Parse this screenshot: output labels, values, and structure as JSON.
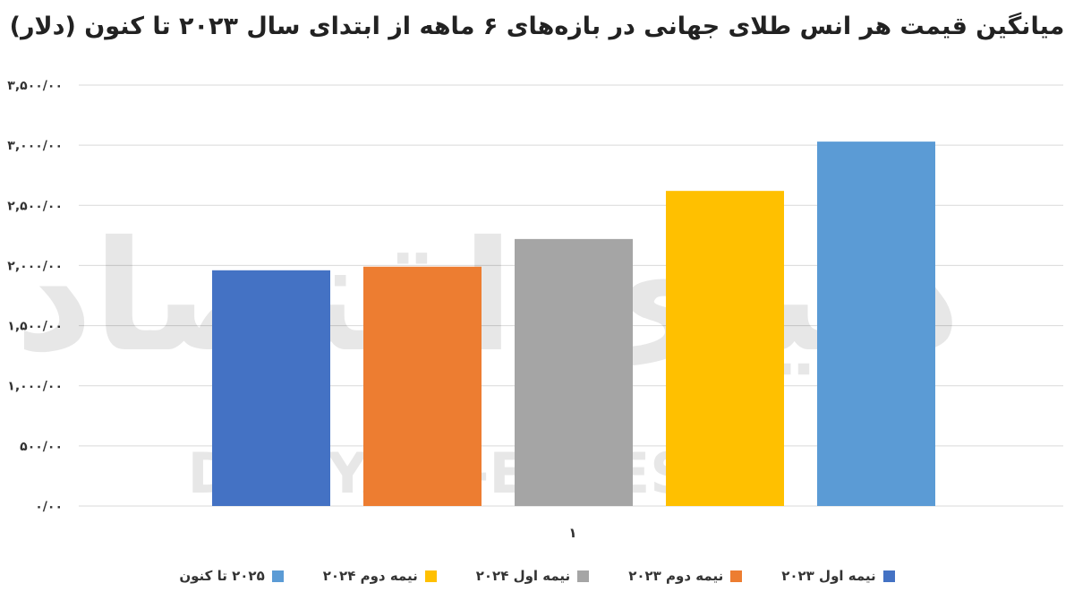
{
  "chart_data": {
    "type": "bar",
    "title": "میانگین قیمت هر انس طلای جهانی در بازه‌های ۶ ماهه از ابتدای سال ۲۰۲۳ تا کنون (دلار)",
    "x_tick_label": "۱",
    "ylim": [
      0,
      3500
    ],
    "y_ticks": [
      {
        "value": 0,
        "label": "۰/۰۰"
      },
      {
        "value": 500,
        "label": "۵۰۰/۰۰"
      },
      {
        "value": 1000,
        "label": "۱,۰۰۰/۰۰"
      },
      {
        "value": 1500,
        "label": "۱,۵۰۰/۰۰"
      },
      {
        "value": 2000,
        "label": "۲,۰۰۰/۰۰"
      },
      {
        "value": 2500,
        "label": "۲,۵۰۰/۰۰"
      },
      {
        "value": 3000,
        "label": "۳,۰۰۰/۰۰"
      },
      {
        "value": 3500,
        "label": "۳,۵۰۰/۰۰"
      }
    ],
    "grid": true,
    "legend_position": "bottom",
    "series": [
      {
        "name": "نیمه اول ۲۰۲۳",
        "value": 1960,
        "color": "#4472C4"
      },
      {
        "name": "نیمه دوم ۲۰۲۳",
        "value": 1990,
        "color": "#ED7D31"
      },
      {
        "name": "نیمه اول ۲۰۲۴",
        "value": 2220,
        "color": "#A5A5A5"
      },
      {
        "name": "نیمه  دوم ۲۰۲۴",
        "value": 2620,
        "color": "#FFC000"
      },
      {
        "name": "۲۰۲۵ تا کنون",
        "value": 3030,
        "color": "#5B9BD5"
      }
    ]
  },
  "watermark": {
    "persian": "دنیای اقتصاد",
    "latin": "DONYA-E-EQTESAD"
  }
}
